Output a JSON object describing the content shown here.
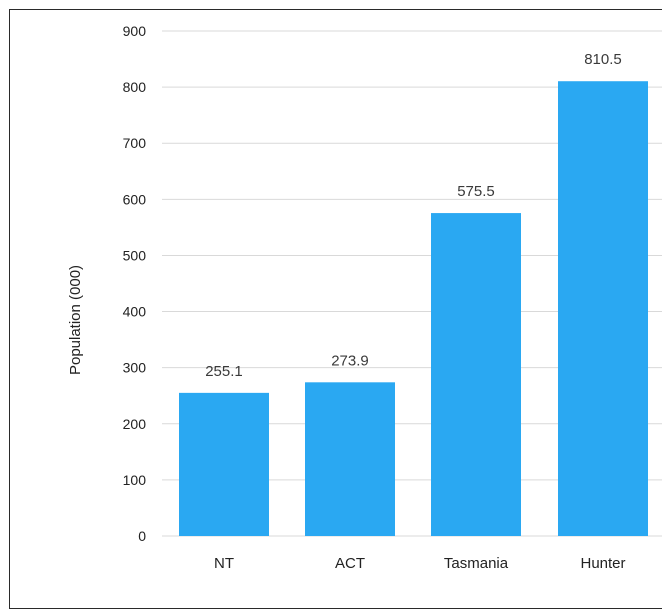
{
  "chart_data": {
    "type": "bar",
    "categories": [
      "NT",
      "ACT",
      "Tasmania",
      "Hunter"
    ],
    "values": [
      255.1,
      273.9,
      575.5,
      810.5
    ],
    "value_labels": [
      "255.1",
      "273.9",
      "575.5",
      "810.5"
    ],
    "ylabel": "Population (000)",
    "xlabel": "",
    "ylim": [
      0,
      900
    ],
    "yticks": [
      "0",
      "100",
      "200",
      "300",
      "400",
      "500",
      "600",
      "700",
      "800",
      "900"
    ],
    "grid": true,
    "bar_color": "#2aa8f2",
    "grid_color": "#d9d9d9"
  }
}
